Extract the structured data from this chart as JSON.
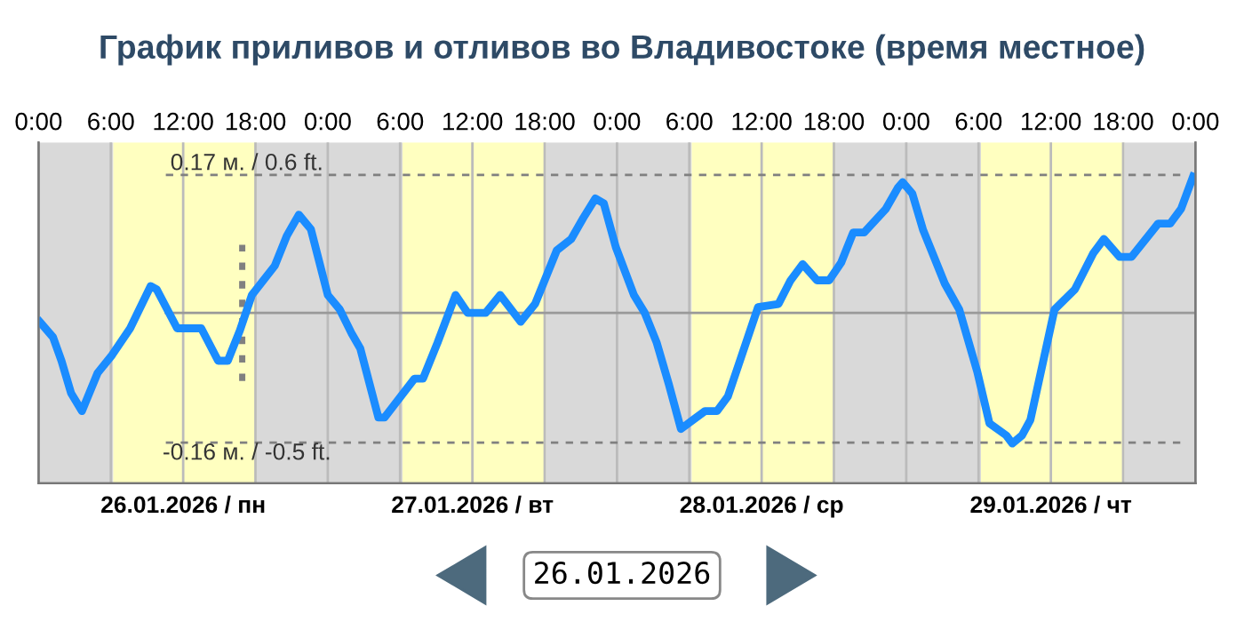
{
  "chart_data": {
    "type": "line",
    "title": "График приливов и отливов во Владивостоке (время местное)",
    "series": [
      {
        "color": "#1a8cff",
        "x": [
          "2026-01-26T00:06",
          "2026-01-26T01:12",
          "2026-01-26T01:54",
          "2026-01-26T02:42",
          "2026-01-26T03:36",
          "2026-01-26T04:54",
          "2026-01-26T06:06",
          "2026-01-26T07:36",
          "2026-01-26T09:18",
          "2026-01-26T09:48",
          "2026-01-26T11:30",
          "2026-01-26T13:30",
          "2026-01-26T14:54",
          "2026-01-26T15:42",
          "2026-01-26T16:42",
          "2026-01-26T17:42",
          "2026-01-26T19:36",
          "2026-01-26T20:36",
          "2026-01-26T21:36",
          "2026-01-26T22:36",
          "2026-01-27T00:00",
          "2026-01-27T01:00",
          "2026-01-27T02:00",
          "2026-01-27T02:42",
          "2026-01-27T04:12",
          "2026-01-27T04:42",
          "2026-01-27T07:12",
          "2026-01-27T07:54",
          "2026-01-27T09:06",
          "2026-01-27T10:36",
          "2026-01-27T11:36",
          "2026-01-27T13:06",
          "2026-01-27T14:18",
          "2026-01-27T16:00",
          "2026-01-27T17:12",
          "2026-01-27T19:00",
          "2026-01-27T20:12",
          "2026-01-27T21:12",
          "2026-01-27T22:12",
          "2026-01-27T22:54",
          "2026-01-27T23:54",
          "2026-01-28T01:24",
          "2026-01-28T02:18",
          "2026-01-28T03:18",
          "2026-01-28T04:18",
          "2026-01-28T05:18",
          "2026-01-28T06:18",
          "2026-01-28T07:18",
          "2026-01-28T08:18",
          "2026-01-28T09:12",
          "2026-01-28T10:42",
          "2026-01-28T11:42",
          "2026-01-28T13:24",
          "2026-01-28T14:24",
          "2026-01-28T15:24",
          "2026-01-28T16:36",
          "2026-01-28T17:36",
          "2026-01-28T18:36",
          "2026-01-28T19:36",
          "2026-01-28T20:30",
          "2026-01-28T22:18",
          "2026-01-28T23:18",
          "2026-01-28T23:42",
          "2026-01-29T00:30",
          "2026-01-29T01:24",
          "2026-01-29T03:12",
          "2026-01-29T04:24",
          "2026-01-29T05:54",
          "2026-01-29T06:54",
          "2026-01-29T08:18",
          "2026-01-29T08:48",
          "2026-01-29T09:36",
          "2026-01-29T10:18",
          "2026-01-29T12:18",
          "2026-01-29T14:00",
          "2026-01-29T15:30",
          "2026-01-29T16:24",
          "2026-01-29T17:42",
          "2026-01-29T18:42",
          "2026-01-29T20:54",
          "2026-01-29T21:54",
          "2026-01-29T22:48",
          "2026-01-29T23:48"
        ],
        "values": [
          -0.011,
          -0.03,
          -0.059,
          -0.099,
          -0.121,
          -0.074,
          -0.052,
          -0.019,
          0.033,
          0.029,
          -0.019,
          -0.019,
          -0.059,
          -0.059,
          -0.022,
          0.022,
          0.058,
          0.095,
          0.121,
          0.103,
          0.022,
          0.004,
          -0.026,
          -0.044,
          -0.129,
          -0.129,
          -0.081,
          -0.081,
          -0.037,
          0.022,
          0.0,
          0.0,
          0.022,
          -0.011,
          0.011,
          0.077,
          0.091,
          0.117,
          0.141,
          0.135,
          0.081,
          0.022,
          0.0,
          -0.037,
          -0.088,
          -0.143,
          -0.132,
          -0.121,
          -0.121,
          -0.103,
          -0.037,
          0.007,
          0.011,
          0.04,
          0.06,
          0.04,
          0.04,
          0.062,
          0.099,
          0.099,
          0.128,
          0.154,
          0.161,
          0.147,
          0.102,
          0.036,
          0.004,
          -0.073,
          -0.136,
          -0.151,
          -0.161,
          -0.151,
          -0.132,
          0.004,
          0.029,
          0.073,
          0.091,
          0.069,
          0.069,
          0.11,
          0.11,
          0.128,
          0.168
        ]
      }
    ],
    "xlim": [
      "2026-01-26T00:00",
      "2026-01-30T00:00"
    ],
    "ylim": [
      -0.21,
      0.21
    ],
    "xticks": [
      {
        "value": "2026-01-26T12:00",
        "label": "26.01.2026 / пн"
      },
      {
        "value": "2026-01-27T12:00",
        "label": "27.01.2026 / вт"
      },
      {
        "value": "2026-01-28T12:00",
        "label": "28.01.2026 / ср"
      },
      {
        "value": "2026-01-29T12:00",
        "label": "29.01.2026 / чт"
      }
    ],
    "x2lim": [
      "2026-01-26T00:00",
      "2026-01-30T00:00"
    ],
    "x2ticks": [
      {
        "value": "2026-01-26T00:00",
        "label": "0:00"
      },
      {
        "value": "2026-01-26T06:00",
        "label": "6:00"
      },
      {
        "value": "2026-01-26T12:00",
        "label": "12:00"
      },
      {
        "value": "2026-01-26T18:00",
        "label": "18:00"
      },
      {
        "value": "2026-01-27T00:00",
        "label": "0:00"
      },
      {
        "value": "2026-01-27T06:00",
        "label": "6:00"
      },
      {
        "value": "2026-01-27T12:00",
        "label": "12:00"
      },
      {
        "value": "2026-01-27T18:00",
        "label": "18:00"
      },
      {
        "value": "2026-01-28T00:00",
        "label": "0:00"
      },
      {
        "value": "2026-01-28T06:00",
        "label": "6:00"
      },
      {
        "value": "2026-01-28T12:00",
        "label": "12:00"
      },
      {
        "value": "2026-01-28T18:00",
        "label": "18:00"
      },
      {
        "value": "2026-01-29T00:00",
        "label": "0:00"
      },
      {
        "value": "2026-01-29T06:00",
        "label": "6:00"
      },
      {
        "value": "2026-01-29T12:00",
        "label": "12:00"
      },
      {
        "value": "2026-01-29T18:00",
        "label": "18:00"
      },
      {
        "value": "2026-01-30T00:00",
        "label": "0:00"
      }
    ],
    "tick_labels": "x",
    "grid": "x",
    "ref_lines": [
      {
        "axis": "y",
        "value": 0.17,
        "label": "0.17 м. / 0.6 ft.",
        "color": "#808080",
        "line_style": "dashed"
      },
      {
        "axis": "y",
        "value": -0.16,
        "label": "-0.16 м. / -0.5 ft.",
        "color": "#808080",
        "line_style": "dashed"
      },
      {
        "axis": "y",
        "value": 0,
        "color": "#999999",
        "line_style": "solid"
      },
      {
        "axis": "x",
        "value": "2026-01-26T16:54",
        "color": "#808080",
        "line_style": "dotted"
      }
    ],
    "bands": [
      {
        "axis": "x",
        "from": "2026-01-26T00:00",
        "to": "2026-01-26T06:12",
        "color": "#d9d9d9"
      },
      {
        "axis": "x",
        "from": "2026-01-26T06:12",
        "to": "2026-01-26T18:06",
        "color": "#ffffc0"
      },
      {
        "axis": "x",
        "from": "2026-01-26T18:06",
        "to": "2026-01-27T06:12",
        "color": "#d9d9d9"
      },
      {
        "axis": "x",
        "from": "2026-01-27T06:12",
        "to": "2026-01-27T18:06",
        "color": "#ffffc0"
      },
      {
        "axis": "x",
        "from": "2026-01-27T18:06",
        "to": "2026-01-28T06:12",
        "color": "#d9d9d9"
      },
      {
        "axis": "x",
        "from": "2026-01-28T06:12",
        "to": "2026-01-28T18:06",
        "color": "#ffffc0"
      },
      {
        "axis": "x",
        "from": "2026-01-28T18:06",
        "to": "2026-01-29T06:12",
        "color": "#d9d9d9"
      },
      {
        "axis": "x",
        "from": "2026-01-29T06:12",
        "to": "2026-01-29T18:06",
        "color": "#ffffc0"
      },
      {
        "axis": "x",
        "from": "2026-01-29T18:06",
        "to": "2026-01-30T00:00",
        "color": "#d9d9d9"
      }
    ],
    "annotations": [
      "26.01.2026"
    ]
  }
}
